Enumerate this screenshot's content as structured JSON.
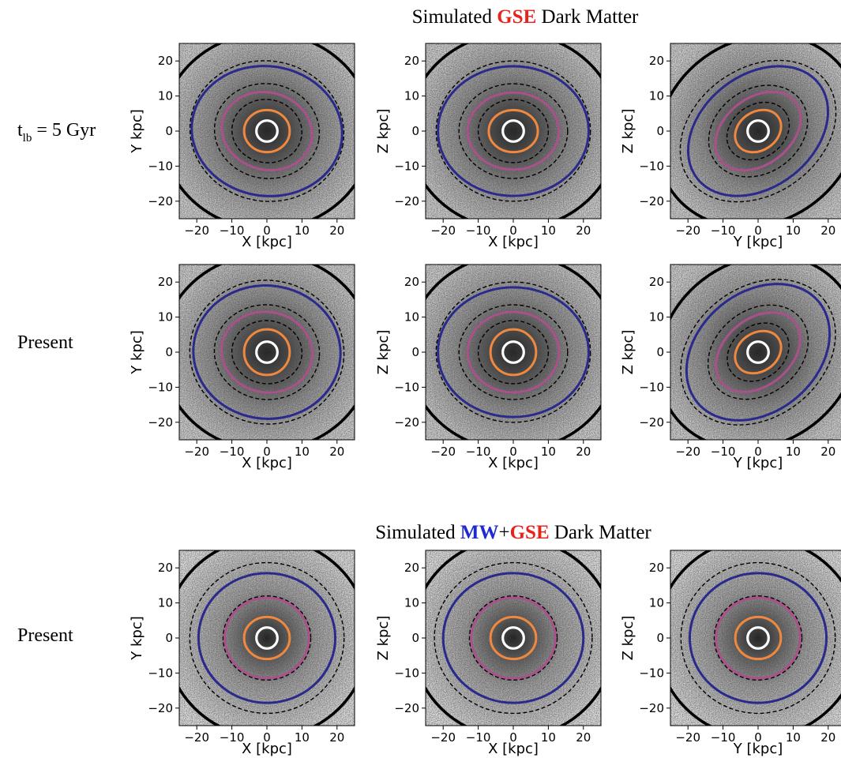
{
  "titles": {
    "top": {
      "prefix": "Simulated ",
      "highlight": "GSE",
      "suffix": " Dark Matter"
    },
    "bottom": {
      "prefix": "Simulated ",
      "mw": "MW",
      "plus": "+",
      "gse": "GSE",
      "suffix": " Dark Matter"
    }
  },
  "row_labels": {
    "row1": {
      "t": "t",
      "sub": "lb",
      "rest": " = 5 Gyr"
    },
    "row2": "Present",
    "row3": "Present"
  },
  "colors": {
    "gse_red": "#e8231c",
    "mw_blue": "#1f2ad6",
    "blue_contour": "#2a2a8c",
    "purple_contour": "#a9518a",
    "orange_contour": "#f0883f",
    "white_contour": "#ffffff",
    "black_contour": "#000000"
  },
  "chart_data": [
    {
      "type": "heatmap",
      "row": 1,
      "xlabel": "X [kpc]",
      "ylabel": "Y kpc]",
      "xlim": [
        -25,
        25
      ],
      "ylim": [
        -25,
        25
      ],
      "xticks": [
        "−20",
        "−10",
        "0",
        "10",
        "20"
      ],
      "yticks": [
        "20",
        "10",
        "0",
        "−10",
        "−20"
      ],
      "contours": [
        {
          "color": "white",
          "rx": 3,
          "ry": 3,
          "angle": 0
        },
        {
          "color": "orange",
          "rx": 6.5,
          "ry": 6,
          "angle": 0
        },
        {
          "color": "purple",
          "rx": 13,
          "ry": 11,
          "angle": 15
        },
        {
          "color": "blue",
          "rx": 21.5,
          "ry": 18.5,
          "angle": 8
        },
        {
          "color": "dashed",
          "rx": 10,
          "ry": 9,
          "angle": 10
        },
        {
          "color": "dashed",
          "rx": 15,
          "ry": 13.5,
          "angle": 10
        },
        {
          "color": "dashed",
          "rx": 22,
          "ry": 20,
          "angle": 10
        },
        {
          "color": "solid-black",
          "rx": 30,
          "ry": 28,
          "angle": 0
        }
      ]
    },
    {
      "type": "heatmap",
      "row": 1,
      "xlabel": "X [kpc]",
      "ylabel": "Z kpc]",
      "xlim": [
        -25,
        25
      ],
      "ylim": [
        -25,
        25
      ],
      "xticks": [
        "−20",
        "−10",
        "0",
        "10",
        "20"
      ],
      "yticks": [
        "20",
        "10",
        "0",
        "−10",
        "−20"
      ],
      "contours": [
        {
          "color": "white",
          "rx": 3,
          "ry": 3,
          "angle": 0
        },
        {
          "color": "orange",
          "rx": 7,
          "ry": 6,
          "angle": 0
        },
        {
          "color": "purple",
          "rx": 13,
          "ry": 11,
          "angle": 0
        },
        {
          "color": "blue",
          "rx": 21.5,
          "ry": 18.5,
          "angle": 0
        },
        {
          "color": "dashed",
          "rx": 10,
          "ry": 9,
          "angle": 0
        },
        {
          "color": "dashed",
          "rx": 15.5,
          "ry": 13.5,
          "angle": 0
        },
        {
          "color": "dashed",
          "rx": 22,
          "ry": 20,
          "angle": 0
        },
        {
          "color": "solid-black",
          "rx": 30,
          "ry": 28,
          "angle": 0
        }
      ]
    },
    {
      "type": "heatmap",
      "row": 1,
      "xlabel": "Y [kpc]",
      "ylabel": "Z kpc]",
      "xlim": [
        -25,
        25
      ],
      "ylim": [
        -25,
        25
      ],
      "xticks": [
        "−20",
        "−10",
        "0",
        "10",
        "20"
      ],
      "yticks": [
        "20",
        "10",
        "0",
        "−10",
        "−20"
      ],
      "contours": [
        {
          "color": "white",
          "rx": 3,
          "ry": 3,
          "angle": 0
        },
        {
          "color": "orange",
          "rx": 7,
          "ry": 5.5,
          "angle": -35
        },
        {
          "color": "purple",
          "rx": 13.5,
          "ry": 9.5,
          "angle": -38
        },
        {
          "color": "blue",
          "rx": 22,
          "ry": 16,
          "angle": -38
        },
        {
          "color": "dashed",
          "rx": 9.5,
          "ry": 7.5,
          "angle": -35
        },
        {
          "color": "dashed",
          "rx": 15,
          "ry": 12,
          "angle": -35
        },
        {
          "color": "dashed",
          "rx": 24,
          "ry": 18,
          "angle": -35
        },
        {
          "color": "solid-black",
          "rx": 30,
          "ry": 26,
          "angle": -35
        }
      ]
    },
    {
      "type": "heatmap",
      "row": 2,
      "xlabel": "X [kpc]",
      "ylabel": "Y kpc]",
      "xlim": [
        -25,
        25
      ],
      "ylim": [
        -25,
        25
      ],
      "xticks": [
        "−20",
        "−10",
        "0",
        "10",
        "20"
      ],
      "yticks": [
        "20",
        "10",
        "0",
        "−10",
        "−20"
      ],
      "contours": [
        {
          "color": "white",
          "rx": 3,
          "ry": 3,
          "angle": 0
        },
        {
          "color": "orange",
          "rx": 6.5,
          "ry": 6.5,
          "angle": 0
        },
        {
          "color": "purple",
          "rx": 13,
          "ry": 11.5,
          "angle": 10
        },
        {
          "color": "blue",
          "rx": 21,
          "ry": 19,
          "angle": 5
        },
        {
          "color": "dashed",
          "rx": 10,
          "ry": 9,
          "angle": 5
        },
        {
          "color": "dashed",
          "rx": 15,
          "ry": 13.5,
          "angle": 5
        },
        {
          "color": "dashed",
          "rx": 22,
          "ry": 20.5,
          "angle": 5
        },
        {
          "color": "solid-black",
          "rx": 30,
          "ry": 28,
          "angle": 0
        }
      ]
    },
    {
      "type": "heatmap",
      "row": 2,
      "xlabel": "X [kpc]",
      "ylabel": "Z kpc]",
      "xlim": [
        -25,
        25
      ],
      "ylim": [
        -25,
        25
      ],
      "xticks": [
        "−20",
        "−10",
        "0",
        "10",
        "20"
      ],
      "yticks": [
        "20",
        "10",
        "0",
        "−10",
        "−20"
      ],
      "contours": [
        {
          "color": "white",
          "rx": 3,
          "ry": 3,
          "angle": 0
        },
        {
          "color": "orange",
          "rx": 6.5,
          "ry": 6.5,
          "angle": 0
        },
        {
          "color": "purple",
          "rx": 13,
          "ry": 11.5,
          "angle": 0
        },
        {
          "color": "blue",
          "rx": 21.5,
          "ry": 18.5,
          "angle": 0
        },
        {
          "color": "dashed",
          "rx": 10,
          "ry": 9,
          "angle": 0
        },
        {
          "color": "dashed",
          "rx": 15.5,
          "ry": 13.5,
          "angle": 0
        },
        {
          "color": "dashed",
          "rx": 22,
          "ry": 20,
          "angle": 0
        },
        {
          "color": "solid-black",
          "rx": 30,
          "ry": 28,
          "angle": 0
        }
      ]
    },
    {
      "type": "heatmap",
      "row": 2,
      "xlabel": "Y [kpc]",
      "ylabel": "Z kpc]",
      "xlim": [
        -25,
        25
      ],
      "ylim": [
        -25,
        25
      ],
      "xticks": [
        "−20",
        "−10",
        "0",
        "10",
        "20"
      ],
      "yticks": [
        "20",
        "10",
        "0",
        "−10",
        "−20"
      ],
      "contours": [
        {
          "color": "white",
          "rx": 3,
          "ry": 3,
          "angle": 0
        },
        {
          "color": "orange",
          "rx": 7,
          "ry": 5.5,
          "angle": -35
        },
        {
          "color": "purple",
          "rx": 13.5,
          "ry": 9.5,
          "angle": -40
        },
        {
          "color": "blue",
          "rx": 22.5,
          "ry": 17,
          "angle": -40
        },
        {
          "color": "dashed",
          "rx": 9.5,
          "ry": 7.5,
          "angle": -38
        },
        {
          "color": "dashed",
          "rx": 15.5,
          "ry": 12,
          "angle": -38
        },
        {
          "color": "dashed",
          "rx": 24,
          "ry": 18.5,
          "angle": -38
        },
        {
          "color": "solid-black",
          "rx": 30,
          "ry": 26,
          "angle": -38
        }
      ]
    },
    {
      "type": "heatmap",
      "row": 3,
      "xlabel": "X [kpc]",
      "ylabel": "Y kpc]",
      "xlim": [
        -25,
        25
      ],
      "ylim": [
        -25,
        25
      ],
      "xticks": [
        "−20",
        "−10",
        "0",
        "10",
        "20"
      ],
      "yticks": [
        "20",
        "10",
        "0",
        "−10",
        "−20"
      ],
      "contours": [
        {
          "color": "white",
          "rx": 3,
          "ry": 3,
          "angle": 0
        },
        {
          "color": "orange",
          "rx": 6.5,
          "ry": 6,
          "angle": 0
        },
        {
          "color": "purple",
          "rx": 12,
          "ry": 11.5,
          "angle": 0
        },
        {
          "color": "blue",
          "rx": 19.5,
          "ry": 18.5,
          "angle": 0
        },
        {
          "color": "dashed",
          "rx": 12.5,
          "ry": 12,
          "angle": 0
        },
        {
          "color": "dashed",
          "rx": 22,
          "ry": 21.5,
          "angle": 0
        },
        {
          "color": "solid-black",
          "rx": 29,
          "ry": 28.5,
          "angle": 0
        }
      ]
    },
    {
      "type": "heatmap",
      "row": 3,
      "xlabel": "X [kpc]",
      "ylabel": "Z kpc]",
      "xlim": [
        -25,
        25
      ],
      "ylim": [
        -25,
        25
      ],
      "xticks": [
        "−20",
        "−10",
        "0",
        "10",
        "20"
      ],
      "yticks": [
        "20",
        "10",
        "0",
        "−10",
        "−20"
      ],
      "contours": [
        {
          "color": "white",
          "rx": 3,
          "ry": 3,
          "angle": 0
        },
        {
          "color": "orange",
          "rx": 6.5,
          "ry": 6,
          "angle": 0
        },
        {
          "color": "purple",
          "rx": 12,
          "ry": 11.5,
          "angle": 0
        },
        {
          "color": "blue",
          "rx": 20,
          "ry": 18.5,
          "angle": 0
        },
        {
          "color": "dashed",
          "rx": 12.5,
          "ry": 12,
          "angle": 0
        },
        {
          "color": "dashed",
          "rx": 22.5,
          "ry": 21.5,
          "angle": 0
        },
        {
          "color": "solid-black",
          "rx": 29,
          "ry": 28.5,
          "angle": 0
        }
      ]
    },
    {
      "type": "heatmap",
      "row": 3,
      "xlabel": "Y [kpc]",
      "ylabel": "Z kpc]",
      "xlim": [
        -25,
        25
      ],
      "ylim": [
        -25,
        25
      ],
      "xticks": [
        "−20",
        "−10",
        "0",
        "10",
        "20"
      ],
      "yticks": [
        "20",
        "10",
        "0",
        "−10",
        "−20"
      ],
      "contours": [
        {
          "color": "white",
          "rx": 3,
          "ry": 3,
          "angle": 0
        },
        {
          "color": "orange",
          "rx": 6.5,
          "ry": 6,
          "angle": 0
        },
        {
          "color": "purple",
          "rx": 12,
          "ry": 11.5,
          "angle": 0
        },
        {
          "color": "blue",
          "rx": 19.5,
          "ry": 18.5,
          "angle": 0
        },
        {
          "color": "dashed",
          "rx": 12.5,
          "ry": 12,
          "angle": 0
        },
        {
          "color": "dashed",
          "rx": 22,
          "ry": 21.5,
          "angle": 0
        },
        {
          "color": "solid-black",
          "rx": 29,
          "ry": 28.5,
          "angle": 0
        }
      ]
    }
  ]
}
